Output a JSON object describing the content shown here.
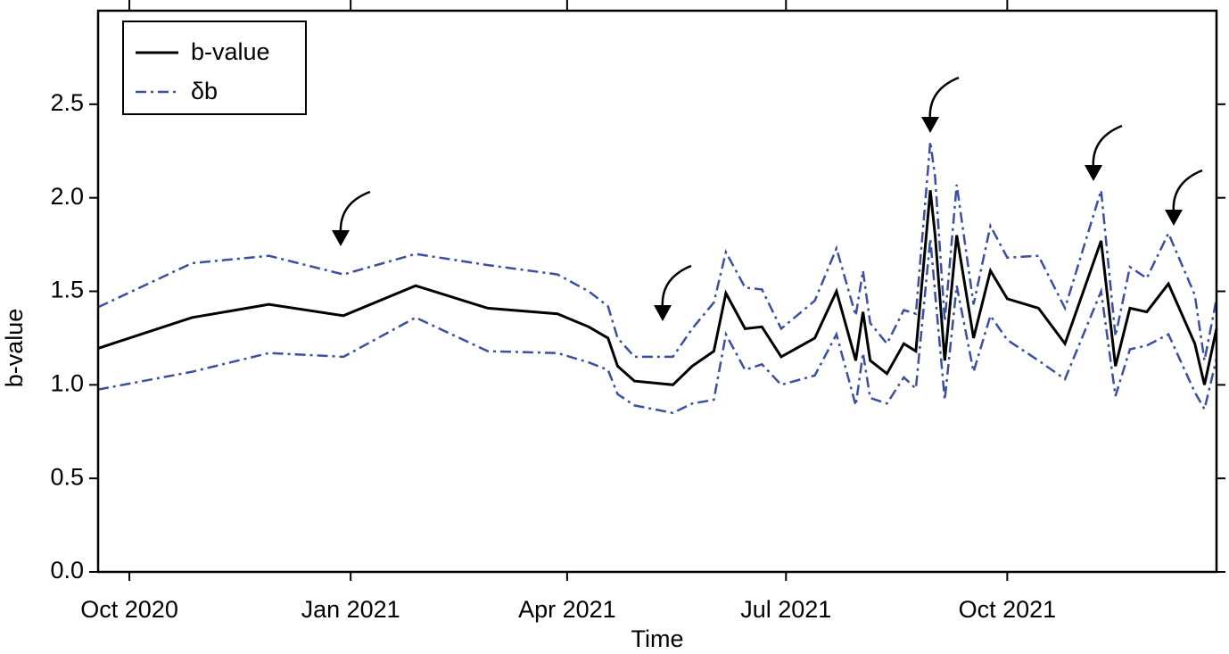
{
  "chart_data": {
    "type": "line",
    "xlabel": "Time",
    "ylabel": "b-value",
    "x": [
      "2020-09-18",
      "2020-10-27",
      "2020-11-28",
      "2020-12-29",
      "2021-01-28",
      "2021-02-27",
      "2021-03-28",
      "2021-04-10",
      "2021-04-18",
      "2021-04-22",
      "2021-04-29",
      "2021-05-15",
      "2021-05-23",
      "2021-06-01",
      "2021-06-06",
      "2021-06-14",
      "2021-06-21",
      "2021-06-29",
      "2021-07-13",
      "2021-07-22",
      "2021-07-30",
      "2021-08-02",
      "2021-08-05",
      "2021-08-12",
      "2021-08-19",
      "2021-08-24",
      "2021-08-30",
      "2021-09-01",
      "2021-09-05",
      "2021-09-10",
      "2021-09-17",
      "2021-09-24",
      "2021-10-01",
      "2021-10-14",
      "2021-10-25",
      "2021-11-09",
      "2021-11-15",
      "2021-11-21",
      "2021-11-28",
      "2021-12-07",
      "2021-12-18",
      "2021-12-22",
      "2021-12-27"
    ],
    "series": [
      {
        "name": "b-value",
        "color": "#000000",
        "values": [
          1.195,
          1.36,
          1.43,
          1.37,
          1.53,
          1.41,
          1.38,
          1.31,
          1.25,
          1.1,
          1.02,
          1.0,
          1.1,
          1.18,
          1.49,
          1.3,
          1.31,
          1.15,
          1.25,
          1.5,
          1.13,
          1.39,
          1.13,
          1.06,
          1.22,
          1.18,
          2.04,
          1.8,
          1.13,
          1.8,
          1.25,
          1.61,
          1.46,
          1.41,
          1.22,
          1.77,
          1.1,
          1.41,
          1.39,
          1.54,
          1.22,
          1.0,
          1.3
        ]
      },
      {
        "name": "δb",
        "color": "#3a4fa0",
        "values": [
          0.22,
          0.29,
          0.26,
          0.22,
          0.17,
          0.23,
          0.21,
          0.19,
          0.17,
          0.15,
          0.13,
          0.15,
          0.2,
          0.26,
          0.22,
          0.22,
          0.2,
          0.15,
          0.2,
          0.23,
          0.24,
          0.22,
          0.2,
          0.16,
          0.18,
          0.2,
          0.26,
          0.31,
          0.21,
          0.27,
          0.18,
          0.24,
          0.22,
          0.28,
          0.19,
          0.27,
          0.16,
          0.22,
          0.18,
          0.27,
          0.26,
          0.13,
          0.16
        ]
      }
    ],
    "xlim": [
      "2020-09-18",
      "2021-12-27"
    ],
    "xticks": [
      {
        "value": "2020-10-01",
        "label": "Oct 2020"
      },
      {
        "value": "2021-01-01",
        "label": "Jan 2021"
      },
      {
        "value": "2021-04-01",
        "label": "Apr 2021"
      },
      {
        "value": "2021-07-01",
        "label": "Jul 2021"
      },
      {
        "value": "2021-10-01",
        "label": "Oct 2021"
      }
    ],
    "ylim": [
      0,
      3.0
    ],
    "yticks": [
      {
        "value": 0,
        "label": "0.0"
      },
      0.5,
      {
        "value": 1,
        "label": "1.0"
      },
      1.5,
      {
        "value": 2,
        "label": "2.0"
      },
      2.5
    ],
    "legend": "upper left"
  }
}
